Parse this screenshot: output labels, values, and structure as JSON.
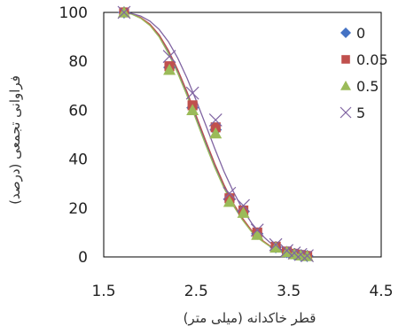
{
  "chart_data": {
    "type": "scatter",
    "xlabel": "قطر خاکدانه (میلی متر)",
    "ylabel": "فراوانی تجمعی (درصد)",
    "xlim": [
      1.5,
      4.5
    ],
    "ylim": [
      0,
      100
    ],
    "xticks": [
      "1.5",
      "2.5",
      "3.5",
      "4.5"
    ],
    "yticks": [
      "0",
      "20",
      "40",
      "60",
      "80",
      "100"
    ],
    "grid": false,
    "legend_position": "top-right",
    "series": [
      {
        "name": "0",
        "marker": "diamond",
        "color": "#4472C4",
        "points": [
          [
            1.72,
            100
          ],
          [
            2.21,
            77.5
          ],
          [
            2.46,
            61
          ],
          [
            2.71,
            52
          ],
          [
            2.86,
            23.5
          ],
          [
            3.01,
            18.5
          ],
          [
            3.16,
            9.5
          ],
          [
            3.36,
            4
          ],
          [
            3.48,
            2
          ],
          [
            3.56,
            1.2
          ],
          [
            3.63,
            0.7
          ],
          [
            3.7,
            0.4
          ]
        ],
        "curve": [
          [
            1.7,
            100
          ],
          [
            1.8,
            99.4
          ],
          [
            1.9,
            97.8
          ],
          [
            2.0,
            95
          ],
          [
            2.1,
            90.5
          ],
          [
            2.2,
            84
          ],
          [
            2.3,
            76
          ],
          [
            2.4,
            67
          ],
          [
            2.5,
            57
          ],
          [
            2.6,
            47
          ],
          [
            2.7,
            37.5
          ],
          [
            2.8,
            29
          ],
          [
            2.9,
            21.5
          ],
          [
            3.0,
            15.5
          ],
          [
            3.1,
            10.5
          ],
          [
            3.2,
            7
          ],
          [
            3.3,
            4.3
          ],
          [
            3.4,
            2.6
          ],
          [
            3.5,
            1.4
          ],
          [
            3.6,
            0.7
          ],
          [
            3.7,
            0.3
          ]
        ]
      },
      {
        "name": "0.05",
        "marker": "square",
        "color": "#C0504D",
        "points": [
          [
            1.72,
            100
          ],
          [
            2.21,
            78
          ],
          [
            2.46,
            62
          ],
          [
            2.71,
            53
          ],
          [
            2.86,
            24
          ],
          [
            3.01,
            19
          ],
          [
            3.16,
            10
          ],
          [
            3.36,
            4.2
          ],
          [
            3.48,
            2.2
          ],
          [
            3.56,
            1.3
          ],
          [
            3.63,
            0.8
          ],
          [
            3.7,
            0.4
          ]
        ],
        "curve": [
          [
            1.7,
            100
          ],
          [
            1.8,
            99.4
          ],
          [
            1.9,
            97.9
          ],
          [
            2.0,
            95.2
          ],
          [
            2.1,
            90.8
          ],
          [
            2.2,
            84.5
          ],
          [
            2.3,
            76.6
          ],
          [
            2.4,
            67.6
          ],
          [
            2.5,
            57.8
          ],
          [
            2.6,
            47.8
          ],
          [
            2.7,
            38.2
          ],
          [
            2.8,
            29.6
          ],
          [
            2.9,
            22
          ],
          [
            3.0,
            15.9
          ],
          [
            3.1,
            10.8
          ],
          [
            3.2,
            7.2
          ],
          [
            3.3,
            4.5
          ],
          [
            3.4,
            2.7
          ],
          [
            3.5,
            1.5
          ],
          [
            3.6,
            0.7
          ],
          [
            3.7,
            0.3
          ]
        ]
      },
      {
        "name": "0.5",
        "marker": "triangle",
        "color": "#9BBB59",
        "points": [
          [
            1.72,
            100
          ],
          [
            2.21,
            76.5
          ],
          [
            2.46,
            60
          ],
          [
            2.71,
            50.5
          ],
          [
            2.86,
            22.5
          ],
          [
            3.01,
            18
          ],
          [
            3.16,
            9
          ],
          [
            3.36,
            3.8
          ],
          [
            3.48,
            2
          ],
          [
            3.56,
            1.1
          ],
          [
            3.63,
            0.6
          ],
          [
            3.7,
            0.3
          ]
        ],
        "curve": [
          [
            1.7,
            100
          ],
          [
            1.8,
            99.3
          ],
          [
            1.9,
            97.6
          ],
          [
            2.0,
            94.6
          ],
          [
            2.1,
            89.9
          ],
          [
            2.2,
            83.2
          ],
          [
            2.3,
            75.1
          ],
          [
            2.4,
            66
          ],
          [
            2.5,
            56
          ],
          [
            2.6,
            46
          ],
          [
            2.7,
            36.6
          ],
          [
            2.8,
            28.2
          ],
          [
            2.9,
            21
          ],
          [
            3.0,
            15.1
          ],
          [
            3.1,
            10.2
          ],
          [
            3.2,
            6.8
          ],
          [
            3.3,
            4.2
          ],
          [
            3.4,
            2.5
          ],
          [
            3.5,
            1.3
          ],
          [
            3.6,
            0.6
          ],
          [
            3.7,
            0.3
          ]
        ]
      },
      {
        "name": "5",
        "marker": "x",
        "color": "#8064A2",
        "points": [
          [
            1.72,
            100
          ],
          [
            2.21,
            82
          ],
          [
            2.46,
            67
          ],
          [
            2.71,
            56
          ],
          [
            2.86,
            26
          ],
          [
            3.01,
            21
          ],
          [
            3.16,
            11
          ],
          [
            3.36,
            5
          ],
          [
            3.48,
            2.6
          ],
          [
            3.56,
            1.6
          ],
          [
            3.63,
            1
          ],
          [
            3.7,
            0.5
          ]
        ],
        "curve": [
          [
            1.7,
            100
          ],
          [
            1.8,
            99.6
          ],
          [
            1.9,
            98.5
          ],
          [
            2.0,
            96.4
          ],
          [
            2.1,
            93
          ],
          [
            2.2,
            88
          ],
          [
            2.3,
            81.3
          ],
          [
            2.4,
            73.2
          ],
          [
            2.5,
            64
          ],
          [
            2.6,
            54.2
          ],
          [
            2.7,
            44.4
          ],
          [
            2.8,
            35
          ],
          [
            2.9,
            26.8
          ],
          [
            3.0,
            19.6
          ],
          [
            3.1,
            13.8
          ],
          [
            3.2,
            9.2
          ],
          [
            3.3,
            5.8
          ],
          [
            3.4,
            3.4
          ],
          [
            3.5,
            1.8
          ],
          [
            3.6,
            0.9
          ],
          [
            3.7,
            0.4
          ]
        ]
      }
    ]
  }
}
